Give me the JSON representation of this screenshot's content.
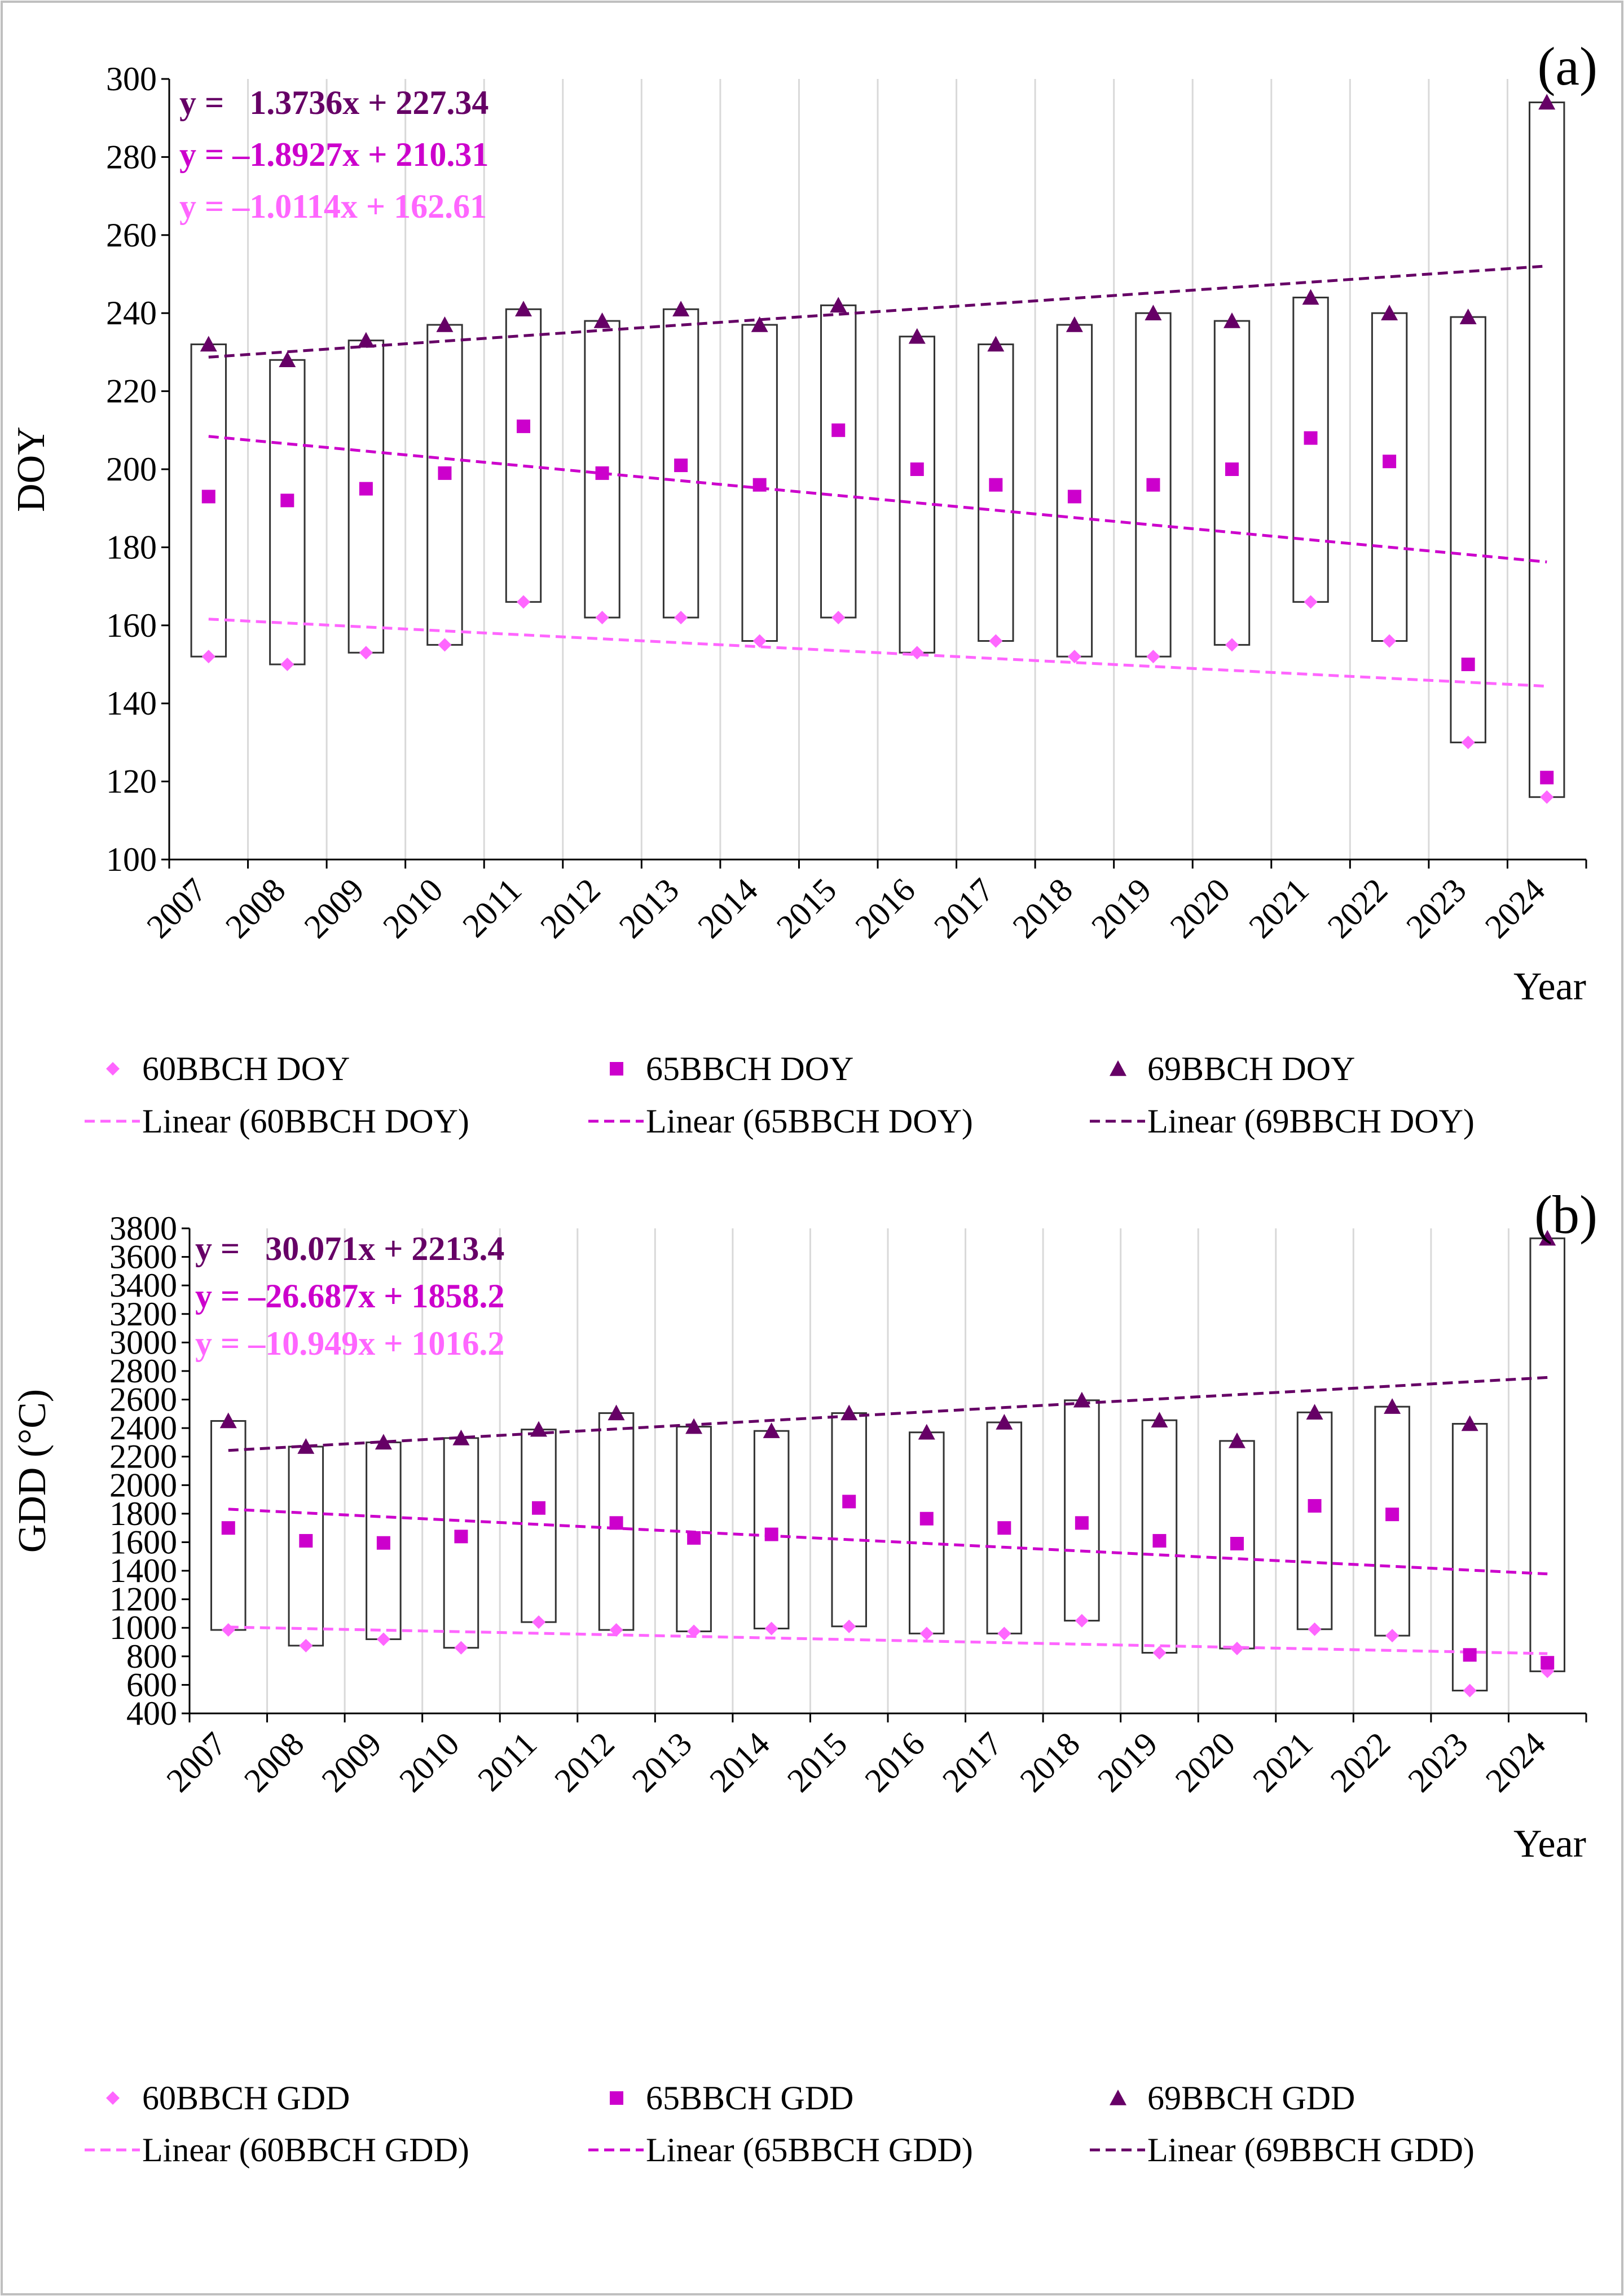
{
  "colors": {
    "s60": "#FF66FF",
    "s65": "#CC00CC",
    "s69": "#660066",
    "frame": "#BFBFBF",
    "grid": "#D9D9D9",
    "box": "#333333",
    "axis": "#000000"
  },
  "chart_data": [
    {
      "type": "scatter",
      "panel_label": "(a)",
      "ylabel": "DOY",
      "xlabel": "Year",
      "ylim": [
        100,
        300
      ],
      "ytick_step": 20,
      "grid": "vertical",
      "legend": "bottom",
      "categories": [
        "2007",
        "2008",
        "2009",
        "2010",
        "2011",
        "2012",
        "2013",
        "2014",
        "2015",
        "2016",
        "2017",
        "2018",
        "2019",
        "2020",
        "2021",
        "2022",
        "2023",
        "2024"
      ],
      "series": [
        {
          "name": "60BBCH DOY",
          "marker": "diamond",
          "color": "#FF66FF",
          "values": [
            152,
            150,
            153,
            155,
            166,
            162,
            162,
            156,
            162,
            153,
            156,
            152,
            152,
            155,
            166,
            156,
            130,
            116
          ]
        },
        {
          "name": "65BBCH DOY",
          "marker": "square",
          "color": "#CC00CC",
          "values": [
            193,
            192,
            195,
            199,
            211,
            199,
            201,
            196,
            210,
            200,
            196,
            193,
            196,
            200,
            208,
            202,
            150,
            121
          ]
        },
        {
          "name": "69BBCH DOY",
          "marker": "triangle",
          "color": "#660066",
          "values": [
            232,
            228,
            233,
            237,
            241,
            238,
            241,
            237,
            242,
            234,
            232,
            237,
            240,
            238,
            244,
            240,
            239,
            294
          ]
        }
      ],
      "trendlines": [
        {
          "name": "Linear (60BBCH DOY)",
          "color": "#FF66FF",
          "slope": -1.0114,
          "intercept": 162.61
        },
        {
          "name": "Linear (65BBCH DOY)",
          "color": "#CC00CC",
          "slope": -1.8927,
          "intercept": 210.31
        },
        {
          "name": "Linear (69BBCH DOY)",
          "color": "#660066",
          "slope": 1.3736,
          "intercept": 227.34
        }
      ],
      "equations": [
        {
          "text": "y =   1.3736x + 227.34",
          "color": "#660066"
        },
        {
          "text": "y = –1.8927x + 210.31",
          "color": "#CC00CC"
        },
        {
          "text": "y = –1.0114x + 162.61",
          "color": "#FF66FF"
        }
      ],
      "legend_items": [
        {
          "label": "60BBCH DOY",
          "kind": "diamond",
          "color": "#FF66FF"
        },
        {
          "label": "65BBCH DOY",
          "kind": "square",
          "color": "#CC00CC"
        },
        {
          "label": "69BBCH DOY",
          "kind": "triangle",
          "color": "#660066"
        },
        {
          "label": "Linear (60BBCH DOY)",
          "kind": "line",
          "color": "#FF66FF"
        },
        {
          "label": "Linear (65BBCH DOY)",
          "kind": "line",
          "color": "#CC00CC"
        },
        {
          "label": "Linear (69BBCH DOY)",
          "kind": "line",
          "color": "#660066"
        }
      ]
    },
    {
      "type": "scatter",
      "panel_label": "(b)",
      "ylabel": "GDD (°C)",
      "xlabel": "Year",
      "ylim": [
        400,
        3800
      ],
      "ytick_step": 200,
      "grid": "vertical",
      "legend": "bottom",
      "categories": [
        "2007",
        "2008",
        "2009",
        "2010",
        "2011",
        "2012",
        "2013",
        "2014",
        "2015",
        "2016",
        "2017",
        "2018",
        "2019",
        "2020",
        "2021",
        "2022",
        "2023",
        "2024"
      ],
      "series": [
        {
          "name": "60BBCH GDD",
          "marker": "diamond",
          "color": "#FF66FF",
          "values": [
            985,
            875,
            920,
            860,
            1040,
            985,
            975,
            995,
            1010,
            960,
            960,
            1050,
            825,
            855,
            990,
            945,
            560,
            695
          ]
        },
        {
          "name": "65BBCH GDD",
          "marker": "square",
          "color": "#CC00CC",
          "values": [
            1700,
            1610,
            1595,
            1640,
            1840,
            1735,
            1630,
            1655,
            1885,
            1765,
            1700,
            1735,
            1610,
            1590,
            1855,
            1795,
            810,
            755
          ]
        },
        {
          "name": "69BBCH GDD",
          "marker": "triangle",
          "color": "#660066",
          "values": [
            2450,
            2270,
            2300,
            2330,
            2390,
            2505,
            2410,
            2380,
            2505,
            2370,
            2440,
            2595,
            2455,
            2310,
            2510,
            2550,
            2430,
            3730
          ]
        }
      ],
      "trendlines": [
        {
          "name": "Linear (60BBCH GDD)",
          "color": "#FF66FF",
          "slope": -10.949,
          "intercept": 1016.2
        },
        {
          "name": "Linear (65BBCH GDD)",
          "color": "#CC00CC",
          "slope": -26.687,
          "intercept": 1858.2
        },
        {
          "name": "Linear (69BBCH GDD)",
          "color": "#660066",
          "slope": 30.071,
          "intercept": 2213.4
        }
      ],
      "equations": [
        {
          "text": "y =   30.071x + 2213.4",
          "color": "#660066"
        },
        {
          "text": "y = –26.687x + 1858.2",
          "color": "#CC00CC"
        },
        {
          "text": "y = –10.949x + 1016.2",
          "color": "#FF66FF"
        }
      ],
      "legend_items": [
        {
          "label": "60BBCH GDD",
          "kind": "diamond",
          "color": "#FF66FF"
        },
        {
          "label": "65BBCH GDD",
          "kind": "square",
          "color": "#CC00CC"
        },
        {
          "label": "69BBCH GDD",
          "kind": "triangle",
          "color": "#660066"
        },
        {
          "label": "Linear (60BBCH GDD)",
          "kind": "line",
          "color": "#FF66FF"
        },
        {
          "label": "Linear (65BBCH GDD)",
          "kind": "line",
          "color": "#CC00CC"
        },
        {
          "label": "Linear (69BBCH GDD)",
          "kind": "line",
          "color": "#660066"
        }
      ]
    }
  ]
}
